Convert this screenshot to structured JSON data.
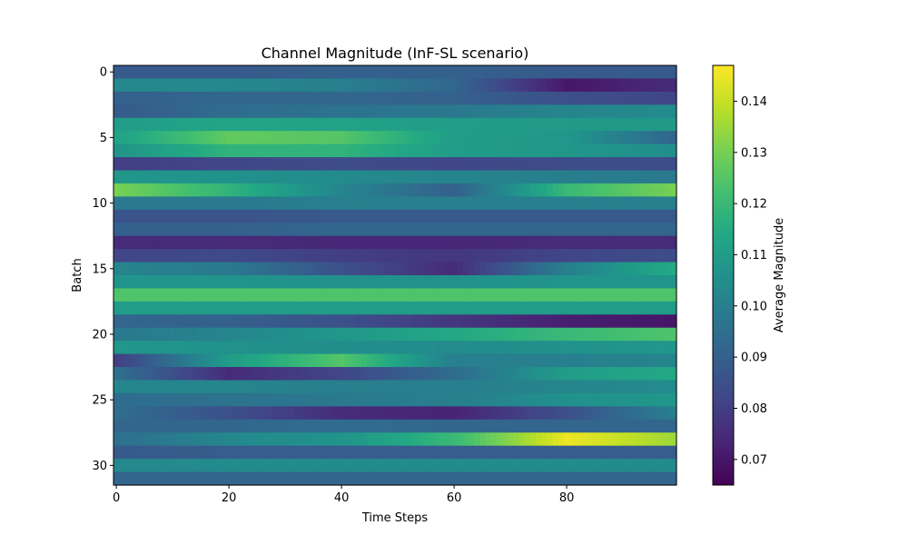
{
  "chart_data": {
    "type": "heatmap",
    "title": "Channel Magnitude (InF-SL scenario)",
    "xlabel": "Time Steps",
    "ylabel": "Batch",
    "colorbar_label": "Average Magnitude",
    "colormap": "viridis",
    "xlim": [
      -0.5,
      99.5
    ],
    "ylim": [
      31.5,
      -0.5
    ],
    "vmin": 0.065,
    "vmax": 0.147,
    "x_ticks": [
      0,
      20,
      40,
      60,
      80
    ],
    "x_tick_labels": [
      "0",
      "20",
      "40",
      "60",
      "80"
    ],
    "y_ticks": [
      0,
      5,
      10,
      15,
      20,
      25,
      30
    ],
    "y_tick_labels": [
      "0",
      "5",
      "10",
      "15",
      "20",
      "25",
      "30"
    ],
    "colorbar_ticks": [
      0.07,
      0.08,
      0.09,
      0.1,
      0.11,
      0.12,
      0.13,
      0.14
    ],
    "colorbar_tick_labels": [
      "0.07",
      "0.08",
      "0.09",
      "0.10",
      "0.11",
      "0.12",
      "0.13",
      "0.14"
    ],
    "n_time_steps": 100,
    "row_keyframes_x": [
      0,
      20,
      40,
      60,
      80,
      99
    ],
    "rows": [
      {
        "batch": 0,
        "values": [
          0.088,
          0.088,
          0.09,
          0.09,
          0.088,
          0.088
        ]
      },
      {
        "batch": 1,
        "values": [
          0.103,
          0.103,
          0.1,
          0.092,
          0.07,
          0.075
        ]
      },
      {
        "batch": 2,
        "values": [
          0.09,
          0.092,
          0.092,
          0.09,
          0.085,
          0.082
        ]
      },
      {
        "batch": 3,
        "values": [
          0.088,
          0.094,
          0.096,
          0.098,
          0.102,
          0.104
        ]
      },
      {
        "batch": 4,
        "values": [
          0.11,
          0.113,
          0.112,
          0.11,
          0.109,
          0.109
        ]
      },
      {
        "batch": 5,
        "values": [
          0.112,
          0.127,
          0.125,
          0.11,
          0.108,
          0.092
        ]
      },
      {
        "batch": 6,
        "values": [
          0.107,
          0.118,
          0.118,
          0.11,
          0.108,
          0.105
        ]
      },
      {
        "batch": 7,
        "values": [
          0.08,
          0.082,
          0.084,
          0.082,
          0.084,
          0.084
        ]
      },
      {
        "batch": 8,
        "values": [
          0.108,
          0.106,
          0.104,
          0.102,
          0.1,
          0.098
        ]
      },
      {
        "batch": 9,
        "values": [
          0.13,
          0.118,
          0.102,
          0.09,
          0.12,
          0.13
        ]
      },
      {
        "batch": 10,
        "values": [
          0.098,
          0.098,
          0.1,
          0.1,
          0.1,
          0.1
        ]
      },
      {
        "batch": 11,
        "values": [
          0.086,
          0.086,
          0.088,
          0.088,
          0.088,
          0.088
        ]
      },
      {
        "batch": 12,
        "values": [
          0.09,
          0.09,
          0.092,
          0.092,
          0.092,
          0.092
        ]
      },
      {
        "batch": 13,
        "values": [
          0.075,
          0.075,
          0.074,
          0.074,
          0.075,
          0.075
        ]
      },
      {
        "batch": 14,
        "values": [
          0.082,
          0.083,
          0.08,
          0.078,
          0.082,
          0.084
        ]
      },
      {
        "batch": 15,
        "values": [
          0.102,
          0.098,
          0.085,
          0.075,
          0.1,
          0.115
        ]
      },
      {
        "batch": 16,
        "values": [
          0.107,
          0.107,
          0.106,
          0.106,
          0.107,
          0.107
        ]
      },
      {
        "batch": 17,
        "values": [
          0.124,
          0.124,
          0.124,
          0.124,
          0.124,
          0.124
        ]
      },
      {
        "batch": 18,
        "values": [
          0.11,
          0.11,
          0.11,
          0.11,
          0.11,
          0.11
        ]
      },
      {
        "batch": 19,
        "values": [
          0.092,
          0.09,
          0.085,
          0.078,
          0.072,
          0.07
        ]
      },
      {
        "batch": 20,
        "values": [
          0.098,
          0.102,
          0.108,
          0.114,
          0.12,
          0.124
        ]
      },
      {
        "batch": 21,
        "values": [
          0.108,
          0.106,
          0.105,
          0.104,
          0.106,
          0.108
        ]
      },
      {
        "batch": 22,
        "values": [
          0.08,
          0.11,
          0.125,
          0.1,
          0.1,
          0.102
        ]
      },
      {
        "batch": 23,
        "values": [
          0.095,
          0.075,
          0.082,
          0.094,
          0.11,
          0.114
        ]
      },
      {
        "batch": 24,
        "values": [
          0.102,
          0.102,
          0.1,
          0.1,
          0.102,
          0.104
        ]
      },
      {
        "batch": 25,
        "values": [
          0.094,
          0.096,
          0.098,
          0.1,
          0.106,
          0.108
        ]
      },
      {
        "batch": 26,
        "values": [
          0.094,
          0.085,
          0.075,
          0.073,
          0.085,
          0.1
        ]
      },
      {
        "batch": 27,
        "values": [
          0.092,
          0.092,
          0.094,
          0.092,
          0.092,
          0.092
        ]
      },
      {
        "batch": 28,
        "values": [
          0.095,
          0.103,
          0.107,
          0.12,
          0.145,
          0.135
        ]
      },
      {
        "batch": 29,
        "values": [
          0.088,
          0.089,
          0.089,
          0.089,
          0.089,
          0.089
        ]
      },
      {
        "batch": 30,
        "values": [
          0.103,
          0.104,
          0.104,
          0.104,
          0.104,
          0.104
        ]
      },
      {
        "batch": 31,
        "values": [
          0.092,
          0.092,
          0.092,
          0.092,
          0.092,
          0.092
        ]
      }
    ]
  }
}
